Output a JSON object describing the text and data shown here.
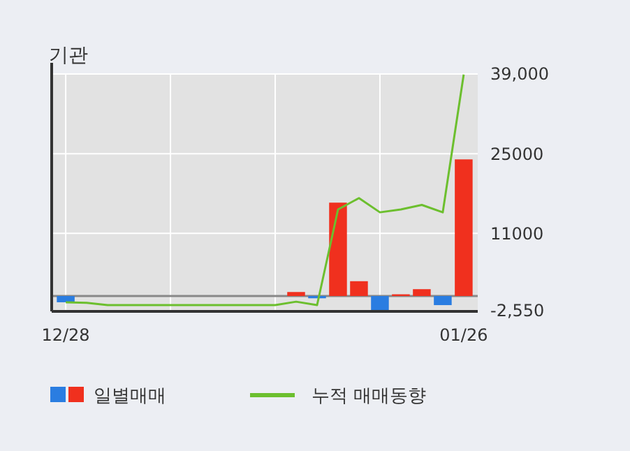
{
  "chart_data": {
    "type": "bar",
    "title": "기관",
    "categories": [
      "12/28",
      null,
      null,
      null,
      null,
      null,
      null,
      null,
      null,
      null,
      null,
      null,
      null,
      null,
      null,
      null,
      null,
      null,
      null,
      "01/26"
    ],
    "series": [
      {
        "name": "일별매매",
        "colors": [
          "#2a7de1",
          "#f0301e",
          "#f0301e",
          "#f0301e",
          "#f0301e",
          "#f0301e",
          "#f0301e",
          "#f0301e",
          "#f0301e",
          "#f0301e",
          "#f0301e",
          "#f0301e",
          "#2a7de1",
          "#f0301e",
          "#f0301e",
          "#2a7de1",
          "#f0301e",
          "#f0301e",
          "#2a7de1",
          "#f0301e"
        ],
        "values": [
          -1100,
          0,
          0,
          0,
          0,
          0,
          0,
          0,
          0,
          0,
          0,
          700,
          -400,
          16400,
          2600,
          -2550,
          300,
          1200,
          -1600,
          24000
        ]
      },
      {
        "name": "누적 매매동향",
        "type": "line",
        "color": "#6cbf2e",
        "values": [
          -1100,
          -1200,
          -1600,
          -1600,
          -1600,
          -1600,
          -1600,
          -1600,
          -1600,
          -1600,
          -1600,
          -1000,
          -1600,
          15200,
          17200,
          14700,
          15200,
          16000,
          14700,
          38900
        ]
      }
    ],
    "ylim": [
      -2700,
      39000
    ],
    "yticks": [
      {
        "value": -2550,
        "label": "-2,550"
      },
      11000,
      25000,
      {
        "value": 39000,
        "label": "39,000"
      }
    ],
    "grid": true,
    "legend": "bottom"
  }
}
